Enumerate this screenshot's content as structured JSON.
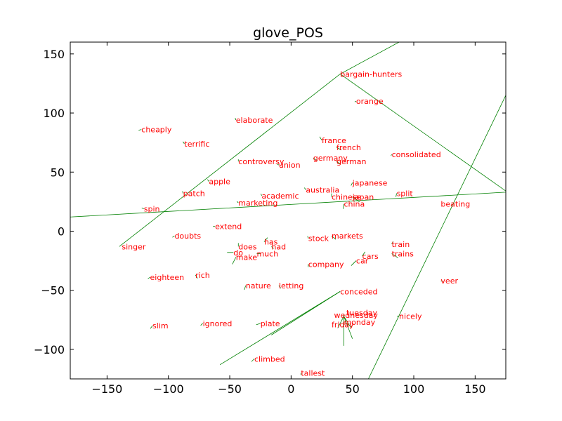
{
  "chart_data": {
    "type": "scatter",
    "title": "glove_POS",
    "xlabel": "",
    "ylabel": "",
    "xlim": [
      -180,
      175
    ],
    "ylim": [
      -125,
      160
    ],
    "xticks": [
      -150,
      -100,
      -50,
      0,
      50,
      100,
      150
    ],
    "yticks": [
      -100,
      -50,
      0,
      50,
      100,
      150
    ],
    "grid": false,
    "label_color": "#ff0000",
    "arrow_color": "#008000",
    "points": [
      {
        "word": "bargain-hunters",
        "x": 40,
        "y": 133,
        "dx": 0,
        "dy": 0
      },
      {
        "word": "orange",
        "x": 53,
        "y": 110,
        "dx": -2,
        "dy": -1
      },
      {
        "word": "elaborate",
        "x": -45,
        "y": 94,
        "dx": -1,
        "dy": 3
      },
      {
        "word": "cheaply",
        "x": -122,
        "y": 86,
        "dx": -4,
        "dy": -1
      },
      {
        "word": "france",
        "x": 25,
        "y": 77,
        "dx": -3,
        "dy": 5
      },
      {
        "word": "terrific",
        "x": -87,
        "y": 74,
        "dx": -2,
        "dy": 3
      },
      {
        "word": "french",
        "x": 37,
        "y": 71,
        "dx": 7,
        "dy": -4
      },
      {
        "word": "consolidated",
        "x": 82,
        "y": 65,
        "dx": -1,
        "dy": -2
      },
      {
        "word": "germany",
        "x": 18,
        "y": 62,
        "dx": 6,
        "dy": -4
      },
      {
        "word": "controversy",
        "x": -43,
        "y": 59,
        "dx": 0,
        "dy": 3
      },
      {
        "word": "german",
        "x": 37,
        "y": 59,
        "dx": 6,
        "dy": -4
      },
      {
        "word": "union",
        "x": -10,
        "y": 56,
        "dx": -2,
        "dy": 1
      },
      {
        "word": "apple",
        "x": -67,
        "y": 42,
        "dx": -2,
        "dy": 3
      },
      {
        "word": "japanese",
        "x": 50,
        "y": 41,
        "dx": -2,
        "dy": -4
      },
      {
        "word": "australia",
        "x": 12,
        "y": 35,
        "dx": -2,
        "dy": 3
      },
      {
        "word": "patch",
        "x": -88,
        "y": 32,
        "dx": -1,
        "dy": 3
      },
      {
        "word": "academic",
        "x": -24,
        "y": 30,
        "dx": -1,
        "dy": 3
      },
      {
        "word": "split",
        "x": 86,
        "y": 32,
        "dx": -1,
        "dy": -5
      },
      {
        "word": "chinese",
        "x": 33,
        "y": 29,
        "dx": 0,
        "dy": 5
      },
      {
        "word": "japan",
        "x": 50,
        "y": 29,
        "dx": 10,
        "dy": -7
      },
      {
        "word": "china",
        "x": 43,
        "y": 23,
        "dx": -1,
        "dy": -7
      },
      {
        "word": "marketing",
        "x": -43,
        "y": 24,
        "dx": -2,
        "dy": 2
      },
      {
        "word": "beating",
        "x": 122,
        "y": 23,
        "dx": 0,
        "dy": 0
      },
      {
        "word": "spin",
        "x": -120,
        "y": 19,
        "dx": -3,
        "dy": 1
      },
      {
        "word": "extend",
        "x": -62,
        "y": 4,
        "dx": -3,
        "dy": 0
      },
      {
        "word": "doubts",
        "x": -95,
        "y": -4,
        "dx": -3,
        "dy": -2
      },
      {
        "word": "stock",
        "x": 14,
        "y": -6,
        "dx": -1,
        "dy": 3
      },
      {
        "word": "markets",
        "x": 33,
        "y": -4,
        "dx": 6,
        "dy": -5
      },
      {
        "word": "has",
        "x": -22,
        "y": -9,
        "dx": 5,
        "dy": 6
      },
      {
        "word": "train",
        "x": 82,
        "y": -11,
        "dx": 2,
        "dy": 4
      },
      {
        "word": "singer",
        "x": -138,
        "y": -13,
        "dx": 0,
        "dy": 0
      },
      {
        "word": "had",
        "x": -16,
        "y": -13,
        "dx": 3,
        "dy": -3
      },
      {
        "word": "does",
        "x": -43,
        "y": -13,
        "dx": 0,
        "dy": 5
      },
      {
        "word": "do",
        "x": -47,
        "y": -18,
        "dx": -9,
        "dy": 0
      },
      {
        "word": "much",
        "x": -28,
        "y": -19,
        "dx": 5,
        "dy": 0
      },
      {
        "word": "trains",
        "x": 82,
        "y": -19,
        "dx": 9,
        "dy": -6
      },
      {
        "word": "cars",
        "x": 58,
        "y": -21,
        "dx": 4,
        "dy": 6
      },
      {
        "word": "make",
        "x": -45,
        "y": -22,
        "dx": -5,
        "dy": -10
      },
      {
        "word": "car",
        "x": 53,
        "y": -25,
        "dx": -7,
        "dy": -7
      },
      {
        "word": "company",
        "x": 14,
        "y": -28,
        "dx": 0,
        "dy": -4
      },
      {
        "word": "rich",
        "x": -78,
        "y": -37,
        "dx": 3,
        "dy": -5
      },
      {
        "word": "eighteen",
        "x": -115,
        "y": -39,
        "dx": -3,
        "dy": -2
      },
      {
        "word": "veer",
        "x": 122,
        "y": -42,
        "dx": 3,
        "dy": -1
      },
      {
        "word": "nature",
        "x": -37,
        "y": -46,
        "dx": -2,
        "dy": -6
      },
      {
        "word": "letting",
        "x": -10,
        "y": -46,
        "dx": 3,
        "dy": -4
      },
      {
        "word": "conceded",
        "x": 40,
        "y": -51,
        "dx": -98,
        "dy": -62
      },
      {
        "word": "nicely",
        "x": 88,
        "y": -72,
        "dx": -3,
        "dy": 0
      },
      {
        "word": "tuesday",
        "x": 45,
        "y": -69,
        "dx": 0,
        "dy": 0
      },
      {
        "word": "wednesday",
        "x": 35,
        "y": -71,
        "dx": 0,
        "dy": 0
      },
      {
        "word": "monday",
        "x": 43,
        "y": -77,
        "dx": 0,
        "dy": 0
      },
      {
        "word": "ignored",
        "x": -72,
        "y": -78,
        "dx": -3,
        "dy": -3
      },
      {
        "word": "plate",
        "x": -25,
        "y": -78,
        "dx": -6,
        "dy": -2
      },
      {
        "word": "friday",
        "x": 33,
        "y": -79,
        "dx": 0,
        "dy": 0
      },
      {
        "word": "slim",
        "x": -113,
        "y": -80,
        "dx": -3,
        "dy": -4
      },
      {
        "word": "climbed",
        "x": -30,
        "y": -108,
        "dx": -4,
        "dy": -4
      },
      {
        "word": "tallest",
        "x": 8,
        "y": -120,
        "dx": 0,
        "dy": -3
      }
    ],
    "lines": [
      {
        "x1": -140,
        "y1": -13,
        "x2": 40,
        "y2": 133
      },
      {
        "x1": 40,
        "y1": 133,
        "x2": 88,
        "y2": 160
      },
      {
        "x1": 40,
        "y1": 133,
        "x2": 175,
        "y2": 34
      },
      {
        "x1": -180,
        "y1": 12,
        "x2": 175,
        "y2": 33
      },
      {
        "x1": 63,
        "y1": -125,
        "x2": 175,
        "y2": 115
      },
      {
        "x1": 40,
        "y1": -51,
        "x2": -58,
        "y2": -113
      },
      {
        "x1": 43,
        "y1": -70,
        "x2": 43,
        "y2": -97
      },
      {
        "x1": 43,
        "y1": -72,
        "x2": 50,
        "y2": -91
      },
      {
        "x1": 43,
        "y1": -72,
        "x2": 38,
        "y2": -82
      },
      {
        "x1": 43,
        "y1": -72,
        "x2": 49,
        "y2": -82
      }
    ]
  }
}
